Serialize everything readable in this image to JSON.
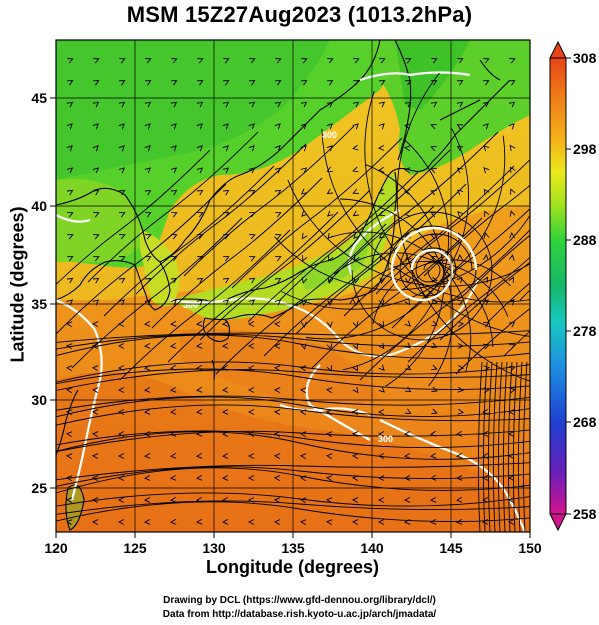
{
  "title": "MSM 15Z27Aug2023 (1013.2hPa)",
  "map": {
    "xlabel": "Longitude (degrees)",
    "ylabel": "Latitude  (degrees)",
    "lon_ticks": [
      "120",
      "125",
      "130",
      "135",
      "140",
      "145",
      "150"
    ],
    "lat_ticks": [
      "25",
      "30",
      "35",
      "40",
      "45"
    ],
    "lon_range": [
      120,
      150
    ],
    "lat_range": [
      22.4,
      47.6
    ],
    "contour_labels": [
      "300",
      "300",
      "300"
    ],
    "storm_center": {
      "lon": 143.8,
      "lat": 36.8
    }
  },
  "colorbar": {
    "ticks": [
      "308",
      "298",
      "288",
      "278",
      "268",
      "258"
    ],
    "range": [
      258,
      308
    ],
    "colors": [
      "#d4148c",
      "#6a1fb8",
      "#1f3fd0",
      "#1d8de0",
      "#17c7c0",
      "#16b86a",
      "#2fd23a",
      "#a6e21e",
      "#eaea1c",
      "#f4b21a",
      "#ee7a18",
      "#e84418"
    ]
  },
  "credits": {
    "line1": "Drawing by DCL (https://www.gfd-dennou.org/library/dcl/)",
    "line2": "Data from http://database.rish.kyoto-u.ac.jp/arch/jmadata/"
  }
}
